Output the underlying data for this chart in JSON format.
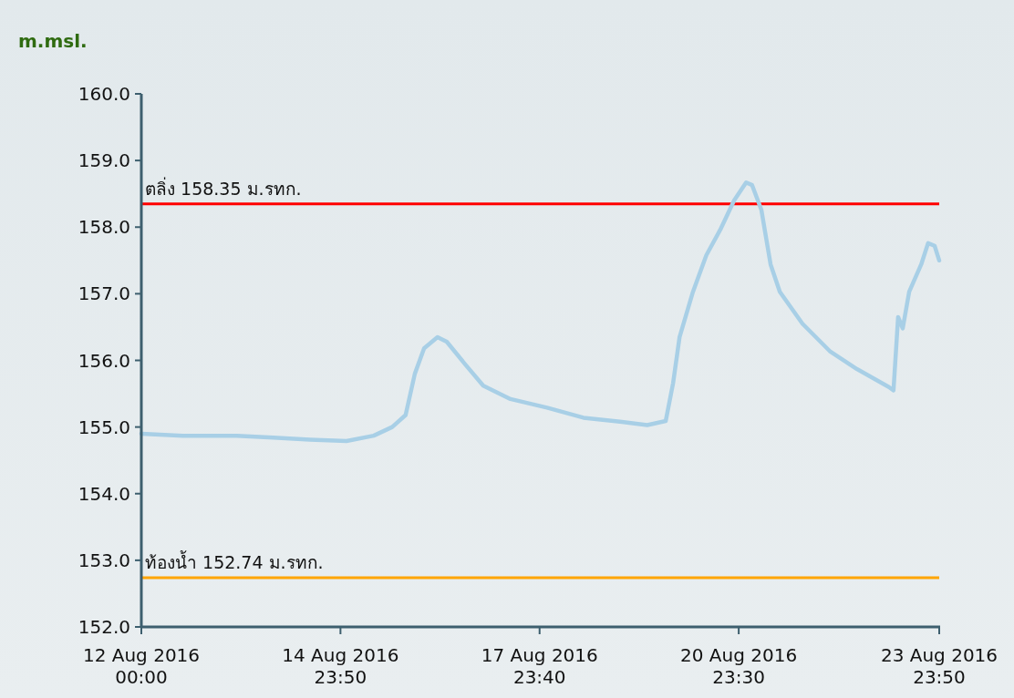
{
  "chart_data": {
    "type": "line",
    "ylabel": "m.msl.",
    "x": [
      "2016-08-12T00:00",
      "2016-08-12T15:00",
      "2016-08-13T10:30",
      "2016-08-13T23:40",
      "2016-08-14T12:50",
      "2016-08-15T02:00",
      "2016-08-15T11:50",
      "2016-08-15T18:30",
      "2016-08-15T23:20",
      "2016-08-16T02:40",
      "2016-08-16T06:00",
      "2016-08-16T10:50",
      "2016-08-16T14:10",
      "2016-08-16T20:50",
      "2016-08-17T03:20",
      "2016-08-17T13:10",
      "2016-08-18T02:20",
      "2016-08-18T15:30",
      "2016-08-19T04:40",
      "2016-08-19T14:30",
      "2016-08-19T21:10",
      "2016-08-19T23:50",
      "2016-08-20T02:10",
      "2016-08-20T07:00",
      "2016-08-20T11:50",
      "2016-08-20T16:50",
      "2016-08-20T21:50",
      "2016-08-21T02:10",
      "2016-08-21T04:20",
      "2016-08-21T07:40",
      "2016-08-21T11:00",
      "2016-08-21T14:20",
      "2016-08-21T22:30",
      "2016-08-22T08:20",
      "2016-08-22T18:10",
      "2016-08-23T05:40",
      "2016-08-23T07:20",
      "2016-08-23T09:00",
      "2016-08-23T10:40",
      "2016-08-23T13:00",
      "2016-08-23T17:20",
      "2016-08-23T19:50",
      "2016-08-23T22:10",
      "2016-08-23T23:50"
    ],
    "series": [
      {
        "color": "#a8cfe6",
        "values": [
          154.9,
          154.87,
          154.87,
          154.84,
          154.81,
          154.79,
          154.87,
          155.0,
          155.18,
          155.8,
          156.18,
          156.35,
          156.28,
          155.94,
          155.62,
          155.42,
          155.29,
          155.14,
          155.08,
          155.03,
          155.09,
          155.66,
          156.35,
          157.03,
          157.58,
          157.96,
          158.4,
          158.67,
          158.63,
          158.26,
          157.44,
          157.03,
          156.55,
          156.14,
          155.87,
          155.6,
          155.55,
          156.65,
          156.48,
          157.03,
          157.44,
          157.76,
          157.72,
          157.5
        ]
      }
    ],
    "xlim": [
      "2016-08-12T00:00",
      "2016-08-23T23:50"
    ],
    "xticks": [
      {
        "value": "2016-08-12T00:00",
        "label": "12 Aug 2016\n00:00"
      },
      {
        "value": "2016-08-14T23:50",
        "label": "14 Aug 2016\n23:50"
      },
      {
        "value": "2016-08-17T23:40",
        "label": "17 Aug 2016\n23:40"
      },
      {
        "value": "2016-08-20T23:30",
        "label": "20 Aug 2016\n23:30"
      },
      {
        "value": "2016-08-23T23:50",
        "label": "23 Aug 2016\n23:50"
      }
    ],
    "ylim": [
      152,
      160
    ],
    "yticks": [
      {
        "value": 152,
        "label": "152.0"
      },
      {
        "value": 153,
        "label": "153.0"
      },
      {
        "value": 154,
        "label": "154.0"
      },
      {
        "value": 155,
        "label": "155.0"
      },
      {
        "value": 156,
        "label": "156.0"
      },
      {
        "value": 157,
        "label": "157.0"
      },
      {
        "value": 158,
        "label": "158.0"
      },
      {
        "value": 159,
        "label": "159.0"
      },
      {
        "value": 160,
        "label": "160.0"
      }
    ],
    "ref_lines": [
      {
        "axis": "y",
        "value": 158.35,
        "label": "ตลิ่ง 158.35 ม.รทก.",
        "color": "#ff0000"
      },
      {
        "axis": "y",
        "value": 152.74,
        "label": "ท้องน้ำ 152.74 ม.รทก.",
        "color": "#ffa500"
      }
    ]
  }
}
